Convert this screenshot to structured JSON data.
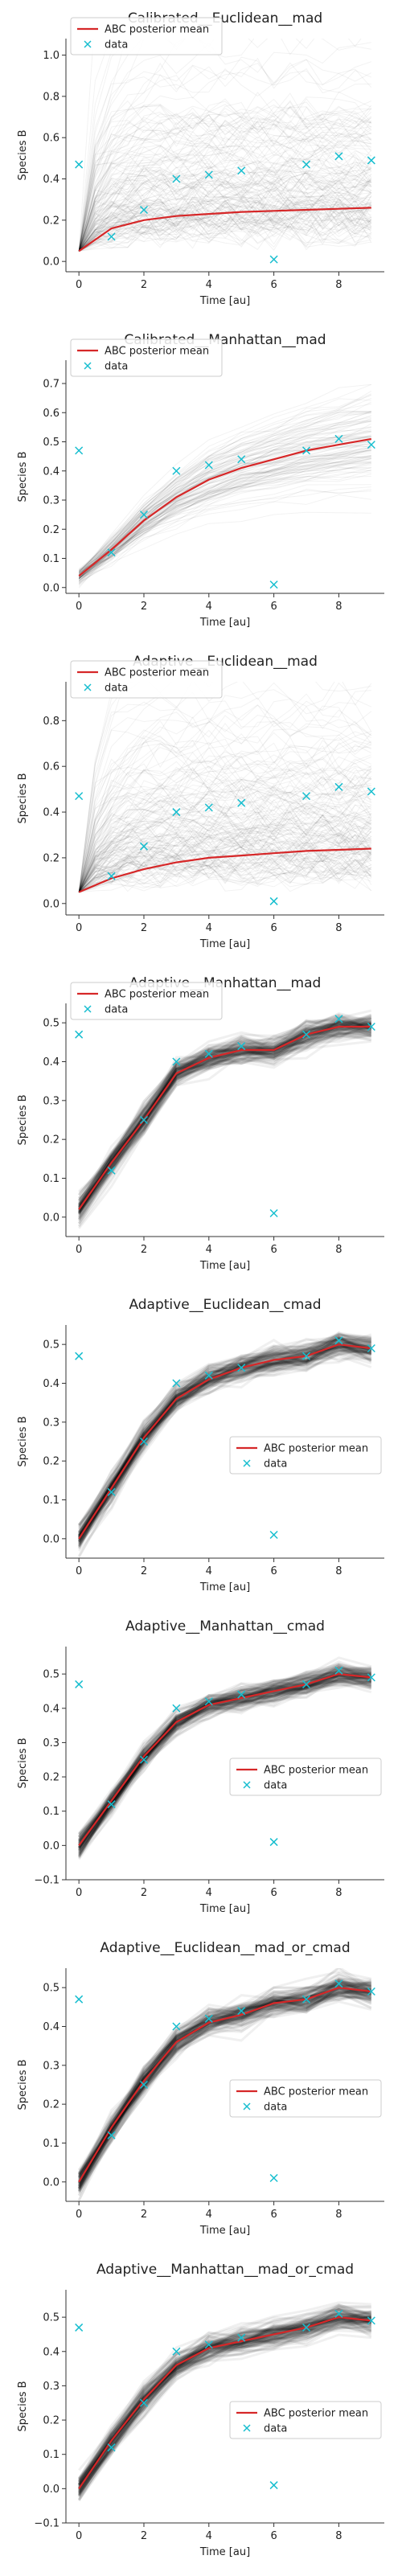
{
  "colors": {
    "mean": "#d62728",
    "data": "#17becf",
    "traj": "#000000"
  },
  "chart_data": [
    {
      "type": "line",
      "title": "Calibrated__Euclidean__mad",
      "xlabel": "Time [au]",
      "ylabel": "Species B",
      "xlim": [
        -0.4,
        9.4
      ],
      "ylim": [
        -0.05,
        1.08
      ],
      "xticks": [
        0,
        2,
        4,
        6,
        8
      ],
      "yticks": [
        "0.0",
        "0.2",
        "0.4",
        "0.6",
        "0.8",
        "1.0"
      ],
      "legend_loc": "upper-left",
      "legend": [
        "ABC posterior mean",
        "data"
      ],
      "x": [
        0,
        1,
        2,
        3,
        4,
        5,
        6,
        7,
        8,
        9
      ],
      "series": [
        {
          "name": "ABC posterior mean",
          "values": [
            0.05,
            0.16,
            0.2,
            0.22,
            0.23,
            0.24,
            0.245,
            0.25,
            0.255,
            0.26
          ]
        },
        {
          "name": "data",
          "values": [
            0.47,
            0.12,
            0.25,
            0.4,
            0.42,
            0.44,
            0.01,
            0.47,
            0.51,
            0.49
          ]
        }
      ]
    },
    {
      "type": "line",
      "title": "Calibrated__Manhattan__mad",
      "xlabel": "Time [au]",
      "ylabel": "Species B",
      "xlim": [
        -0.4,
        9.4
      ],
      "ylim": [
        -0.02,
        0.78
      ],
      "xticks": [
        0,
        2,
        4,
        6,
        8
      ],
      "yticks": [
        "0.0",
        "0.1",
        "0.2",
        "0.3",
        "0.4",
        "0.5",
        "0.6",
        "0.7"
      ],
      "legend_loc": "upper-left",
      "legend": [
        "ABC posterior mean",
        "data"
      ],
      "x": [
        0,
        1,
        2,
        3,
        4,
        5,
        6,
        7,
        8,
        9
      ],
      "series": [
        {
          "name": "ABC posterior mean",
          "values": [
            0.04,
            0.13,
            0.23,
            0.31,
            0.37,
            0.41,
            0.44,
            0.47,
            0.49,
            0.51
          ]
        },
        {
          "name": "data",
          "values": [
            0.47,
            0.12,
            0.25,
            0.4,
            0.42,
            0.44,
            0.01,
            0.47,
            0.51,
            0.49
          ]
        }
      ]
    },
    {
      "type": "line",
      "title": "Adaptive__Euclidean__mad",
      "xlabel": "Time [au]",
      "ylabel": "Species B",
      "xlim": [
        -0.4,
        9.4
      ],
      "ylim": [
        -0.05,
        0.97
      ],
      "xticks": [
        0,
        2,
        4,
        6,
        8
      ],
      "yticks": [
        "0.0",
        "0.2",
        "0.4",
        "0.6",
        "0.8"
      ],
      "legend_loc": "upper-left",
      "legend": [
        "ABC posterior mean",
        "data"
      ],
      "x": [
        0,
        1,
        2,
        3,
        4,
        5,
        6,
        7,
        8,
        9
      ],
      "series": [
        {
          "name": "ABC posterior mean",
          "values": [
            0.05,
            0.11,
            0.15,
            0.18,
            0.2,
            0.21,
            0.22,
            0.23,
            0.235,
            0.24
          ]
        },
        {
          "name": "data",
          "values": [
            0.47,
            0.12,
            0.25,
            0.4,
            0.42,
            0.44,
            0.01,
            0.47,
            0.51,
            0.49
          ]
        }
      ]
    },
    {
      "type": "line",
      "title": "Adaptive__Manhattan__mad",
      "xlabel": "Time [au]",
      "ylabel": "Species B",
      "xlim": [
        -0.4,
        9.4
      ],
      "ylim": [
        -0.05,
        0.55
      ],
      "xticks": [
        0,
        2,
        4,
        6,
        8
      ],
      "yticks": [
        "0.0",
        "0.1",
        "0.2",
        "0.3",
        "0.4",
        "0.5"
      ],
      "legend_loc": "upper-left",
      "legend": [
        "ABC posterior mean",
        "data"
      ],
      "x": [
        0,
        1,
        2,
        3,
        4,
        5,
        6,
        7,
        8,
        9
      ],
      "series": [
        {
          "name": "ABC posterior mean",
          "values": [
            0.02,
            0.14,
            0.25,
            0.37,
            0.41,
            0.43,
            0.43,
            0.47,
            0.49,
            0.49
          ]
        },
        {
          "name": "data",
          "values": [
            0.47,
            0.12,
            0.25,
            0.4,
            0.42,
            0.44,
            0.01,
            0.47,
            0.51,
            0.49
          ]
        }
      ]
    },
    {
      "type": "line",
      "title": "Adaptive__Euclidean__cmad",
      "xlabel": "Time [au]",
      "ylabel": "Species B",
      "xlim": [
        -0.4,
        9.4
      ],
      "ylim": [
        -0.05,
        0.55
      ],
      "xticks": [
        0,
        2,
        4,
        6,
        8
      ],
      "yticks": [
        "0.0",
        "0.1",
        "0.2",
        "0.3",
        "0.4",
        "0.5"
      ],
      "legend_loc": "center-right",
      "legend": [
        "ABC posterior mean",
        "data"
      ],
      "x": [
        0,
        1,
        2,
        3,
        4,
        5,
        6,
        7,
        8,
        9
      ],
      "series": [
        {
          "name": "ABC posterior mean",
          "values": [
            0.0,
            0.13,
            0.26,
            0.36,
            0.41,
            0.44,
            0.46,
            0.47,
            0.5,
            0.49
          ]
        },
        {
          "name": "data",
          "values": [
            0.47,
            0.12,
            0.25,
            0.4,
            0.42,
            0.44,
            0.01,
            0.47,
            0.51,
            0.49
          ]
        }
      ]
    },
    {
      "type": "line",
      "title": "Adaptive__Manhattan__cmad",
      "xlabel": "Time [au]",
      "ylabel": "Species B",
      "xlim": [
        -0.4,
        9.4
      ],
      "ylim": [
        -0.1,
        0.58
      ],
      "xticks": [
        0,
        2,
        4,
        6,
        8
      ],
      "yticks": [
        "−0.1",
        "0.0",
        "0.1",
        "0.2",
        "0.3",
        "0.4",
        "0.5"
      ],
      "legend_loc": "center-right",
      "legend": [
        "ABC posterior mean",
        "data"
      ],
      "x": [
        0,
        1,
        2,
        3,
        4,
        5,
        6,
        7,
        8,
        9
      ],
      "series": [
        {
          "name": "ABC posterior mean",
          "values": [
            0.0,
            0.13,
            0.26,
            0.36,
            0.41,
            0.43,
            0.45,
            0.47,
            0.5,
            0.49
          ]
        },
        {
          "name": "data",
          "values": [
            0.47,
            0.12,
            0.25,
            0.4,
            0.42,
            0.44,
            0.01,
            0.47,
            0.51,
            0.49
          ]
        }
      ]
    },
    {
      "type": "line",
      "title": "Adaptive__Euclidean__mad_or_cmad",
      "xlabel": "Time [au]",
      "ylabel": "Species B",
      "xlim": [
        -0.4,
        9.4
      ],
      "ylim": [
        -0.05,
        0.55
      ],
      "xticks": [
        0,
        2,
        4,
        6,
        8
      ],
      "yticks": [
        "0.0",
        "0.1",
        "0.2",
        "0.3",
        "0.4",
        "0.5"
      ],
      "legend_loc": "center-right",
      "legend": [
        "ABC posterior mean",
        "data"
      ],
      "x": [
        0,
        1,
        2,
        3,
        4,
        5,
        6,
        7,
        8,
        9
      ],
      "series": [
        {
          "name": "ABC posterior mean",
          "values": [
            0.0,
            0.14,
            0.26,
            0.36,
            0.41,
            0.43,
            0.46,
            0.47,
            0.5,
            0.49
          ]
        },
        {
          "name": "data",
          "values": [
            0.47,
            0.12,
            0.25,
            0.4,
            0.42,
            0.44,
            0.01,
            0.47,
            0.51,
            0.49
          ]
        }
      ]
    },
    {
      "type": "line",
      "title": "Adaptive__Manhattan__mad_or_cmad",
      "xlabel": "Time [au]",
      "ylabel": "Species B",
      "xlim": [
        -0.4,
        9.4
      ],
      "ylim": [
        -0.1,
        0.58
      ],
      "xticks": [
        0,
        2,
        4,
        6,
        8
      ],
      "yticks": [
        "−0.1",
        "0.0",
        "0.1",
        "0.2",
        "0.3",
        "0.4",
        "0.5"
      ],
      "legend_loc": "center-right",
      "legend": [
        "ABC posterior mean",
        "data"
      ],
      "x": [
        0,
        1,
        2,
        3,
        4,
        5,
        6,
        7,
        8,
        9
      ],
      "series": [
        {
          "name": "ABC posterior mean",
          "values": [
            0.0,
            0.14,
            0.26,
            0.36,
            0.41,
            0.43,
            0.45,
            0.47,
            0.5,
            0.49
          ]
        },
        {
          "name": "data",
          "values": [
            0.47,
            0.12,
            0.25,
            0.4,
            0.42,
            0.44,
            0.01,
            0.47,
            0.51,
            0.49
          ]
        }
      ]
    }
  ]
}
